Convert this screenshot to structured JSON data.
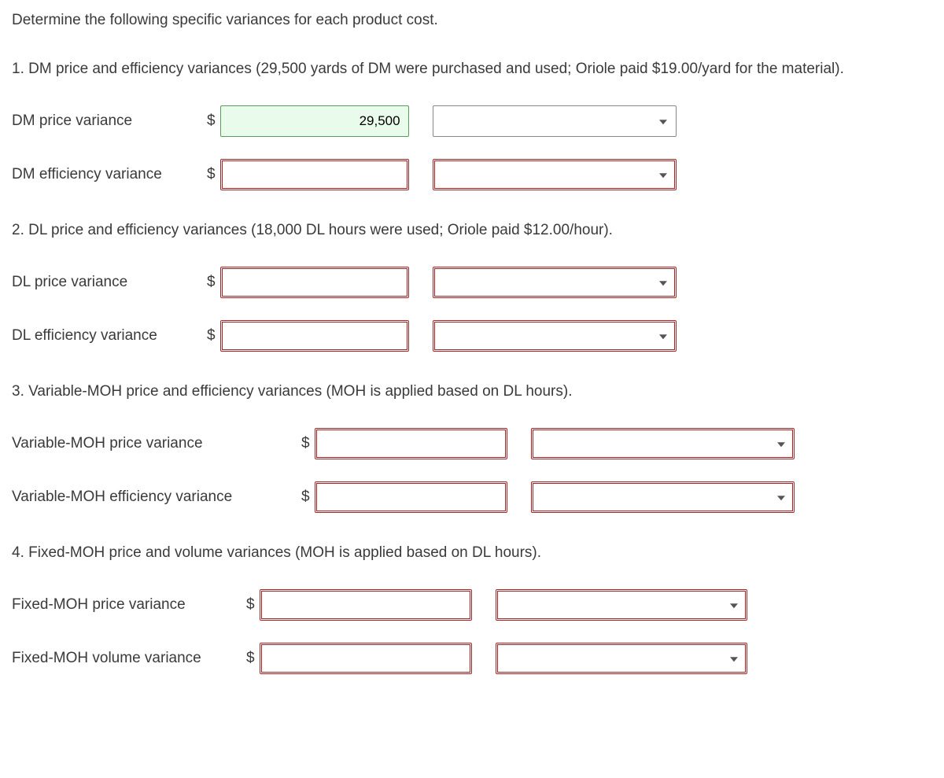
{
  "intro": "Determine the following specific variances for each product cost.",
  "q1": {
    "text": "1. DM price and efficiency variances (29,500 yards of DM were purchased and used; Oriole paid $19.00/yard for the material).",
    "rows": [
      {
        "label": "DM price variance",
        "value": "29,500",
        "filled": true
      },
      {
        "label": "DM efficiency variance",
        "value": "",
        "filled": false
      }
    ],
    "label_w": 240,
    "input_w": 240,
    "sel_w": 310,
    "gap": 30
  },
  "q2": {
    "text": "2. DL price and efficiency variances (18,000 DL hours were used; Oriole paid $12.00/hour).",
    "rows": [
      {
        "label": "DL price variance",
        "value": "",
        "filled": false
      },
      {
        "label": "DL efficiency variance",
        "value": "",
        "filled": false
      }
    ],
    "label_w": 240,
    "input_w": 240,
    "sel_w": 310,
    "gap": 30
  },
  "q3": {
    "text": "3. Variable-MOH price and efficiency variances (MOH is applied based on DL hours).",
    "rows": [
      {
        "label": "Variable-MOH price variance",
        "value": "",
        "filled": false
      },
      {
        "label": "Variable-MOH efficiency variance",
        "value": "",
        "filled": false
      }
    ],
    "label_w": 360,
    "input_w": 245,
    "sel_w": 335,
    "gap": 30
  },
  "q4": {
    "text": "4. Fixed-MOH price and volume variances (MOH is applied based on DL hours).",
    "rows": [
      {
        "label": "Fixed-MOH price variance",
        "value": "",
        "filled": false
      },
      {
        "label": "Fixed-MOH volume variance",
        "value": "",
        "filled": false
      }
    ],
    "label_w": 290,
    "input_w": 270,
    "sel_w": 320,
    "gap": 30
  },
  "currency_symbol": "$"
}
